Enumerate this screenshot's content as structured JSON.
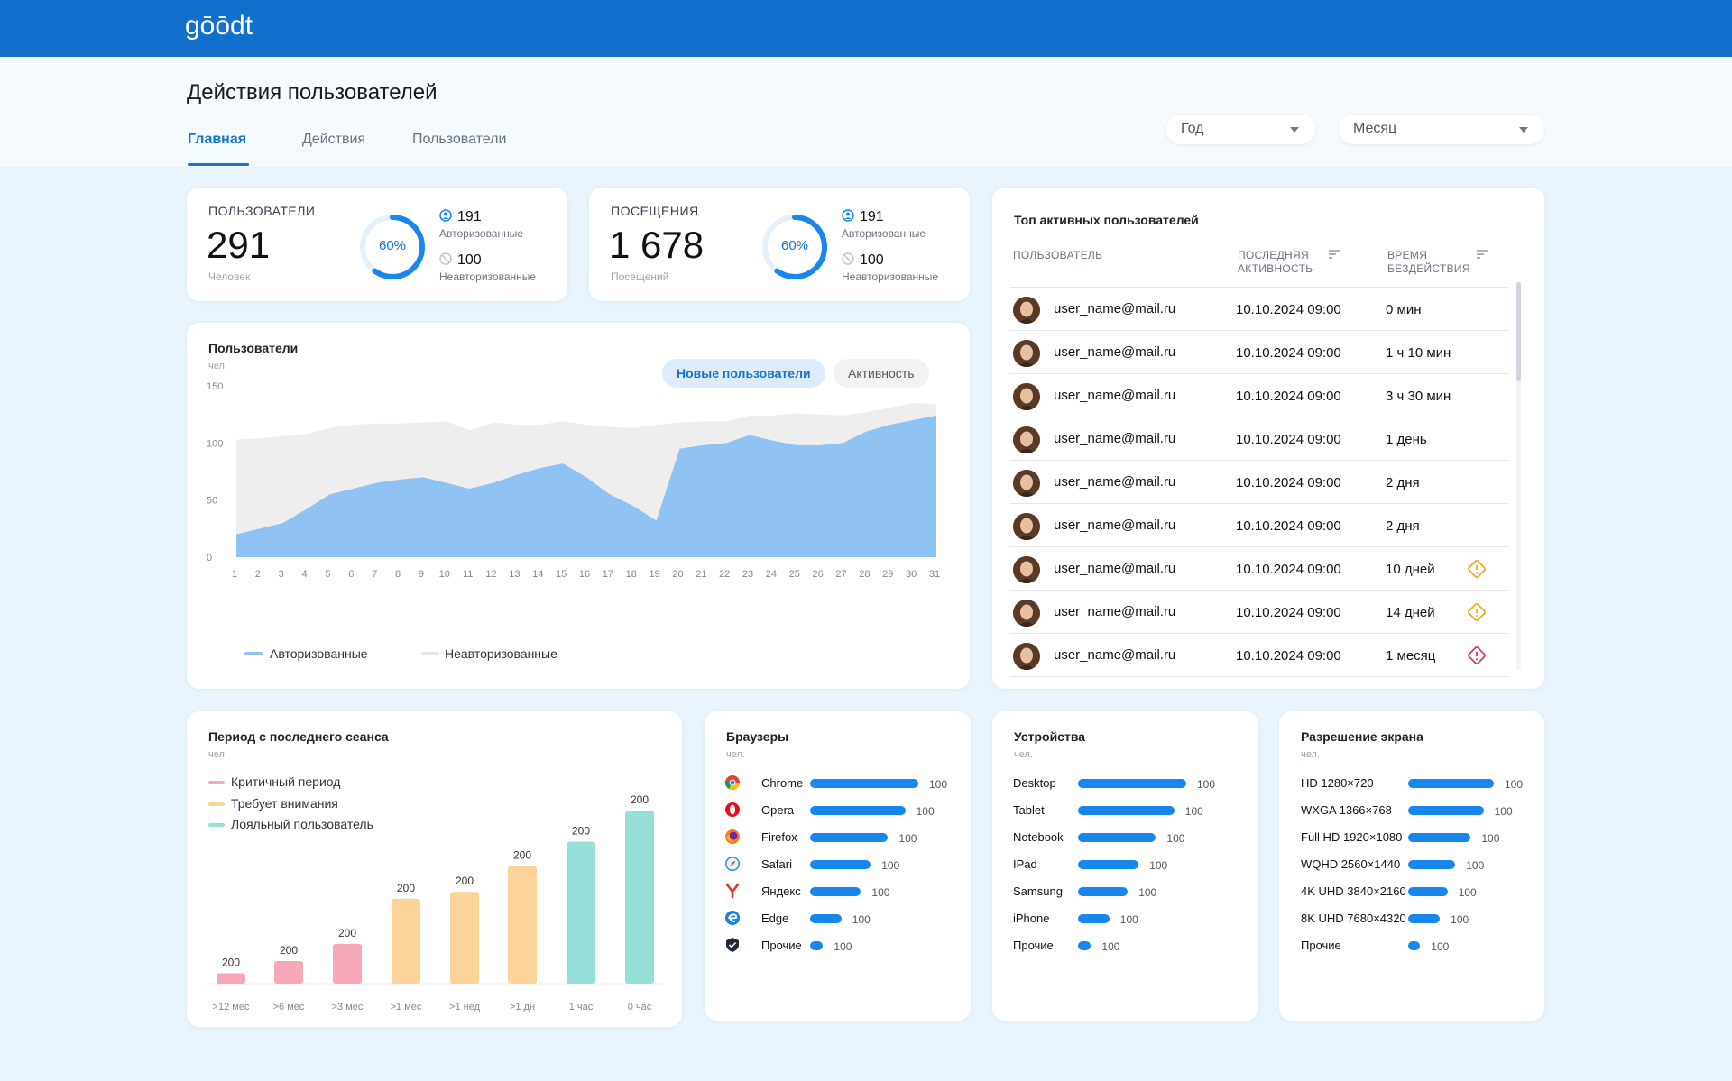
{
  "header": {
    "logo_text": "gōōdt"
  },
  "page": {
    "title": "Действия пользователей",
    "tabs": [
      {
        "label": "Главная"
      },
      {
        "label": "Действия"
      },
      {
        "label": "Пользователи"
      }
    ],
    "filters": {
      "year_label": "Год",
      "month_label": "Месяц"
    }
  },
  "stats": [
    {
      "title": "ПОЛЬЗОВАТЕЛИ",
      "value": "291",
      "unit": "Человек",
      "percent": "60%",
      "percent_fraction": 0.6,
      "authorized_count": "191",
      "authorized_label": "Авторизованные",
      "unauthorized_count": "100",
      "unauthorized_label": "Неавторизованные"
    },
    {
      "title": "ПОСЕЩЕНИЯ",
      "value": "1 678",
      "unit": "Посещений",
      "percent": "60%",
      "percent_fraction": 0.6,
      "authorized_count": "191",
      "authorized_label": "Авторизованные",
      "unauthorized_count": "100",
      "unauthorized_label": "Неавторизованные"
    }
  ],
  "users_chart": {
    "title": "Пользователи",
    "unit": "чел.",
    "toggle_new": "Новые пользователи",
    "toggle_activity": "Активность",
    "legend_authorized": "Авторизованные",
    "legend_unauthorized": "Неавторизованные",
    "colors": {
      "authorized": "#8ec3f3",
      "unauthorized": "#eeeeee"
    }
  },
  "top_users": {
    "title": "Топ активных пользователей",
    "col_user": "ПОЛЬЗОВАТЕЛЬ",
    "col_last_1": "ПОСЛЕДНЯЯ",
    "col_last_2": "АКТИВНОСТЬ",
    "col_idle_1": "ВРЕМЯ",
    "col_idle_2": "БЕЗДЕЙСТВИЯ",
    "rows": [
      {
        "email": "user_name@mail.ru",
        "date": "10.10.2024  09:00",
        "idle": "0 мин",
        "warn": ""
      },
      {
        "email": "user_name@mail.ru",
        "date": "10.10.2024  09:00",
        "idle": "1 ч 10 мин",
        "warn": ""
      },
      {
        "email": "user_name@mail.ru",
        "date": "10.10.2024  09:00",
        "idle": "3 ч 30 мин",
        "warn": ""
      },
      {
        "email": "user_name@mail.ru",
        "date": "10.10.2024  09:00",
        "idle": "1 день",
        "warn": ""
      },
      {
        "email": "user_name@mail.ru",
        "date": "10.10.2024  09:00",
        "idle": "2 дня",
        "warn": ""
      },
      {
        "email": "user_name@mail.ru",
        "date": "10.10.2024  09:00",
        "idle": "2 дня",
        "warn": ""
      },
      {
        "email": "user_name@mail.ru",
        "date": "10.10.2024  09:00",
        "idle": "10 дней",
        "warn": "warning"
      },
      {
        "email": "user_name@mail.ru",
        "date": "10.10.2024  09:00",
        "idle": "14 дней",
        "warn": "warning"
      },
      {
        "email": "user_name@mail.ru",
        "date": "10.10.2024  09:00",
        "idle": "1 месяц",
        "warn": "critical"
      }
    ]
  },
  "session_period": {
    "title": "Период с последнего сеанса",
    "unit": "чел.",
    "legend": [
      {
        "label": "Критичный период",
        "color": "#f7a8b8"
      },
      {
        "label": "Требует внимания",
        "color": "#fcd49a"
      },
      {
        "label": "Лояльный пользователь",
        "color": "#97e0d8"
      }
    ]
  },
  "browsers": {
    "title": "Браузеры",
    "unit": "чел.",
    "items": [
      {
        "label": "Chrome",
        "value": "100",
        "icon": "chrome-icon"
      },
      {
        "label": "Opera",
        "value": "100",
        "icon": "opera-icon"
      },
      {
        "label": "Firefox",
        "value": "100",
        "icon": "firefox-icon"
      },
      {
        "label": "Safari",
        "value": "100",
        "icon": "safari-icon"
      },
      {
        "label": "Яндекс",
        "value": "100",
        "icon": "yandex-icon"
      },
      {
        "label": "Edge",
        "value": "100",
        "icon": "edge-icon"
      },
      {
        "label": "Прочие",
        "value": "100",
        "icon": "shield-icon"
      }
    ],
    "bar_fractions": [
      1.0,
      0.88,
      0.72,
      0.56,
      0.47,
      0.29,
      0.12
    ]
  },
  "devices": {
    "title": "Устройства",
    "unit": "чел.",
    "items": [
      {
        "label": "Desktop",
        "value": "100"
      },
      {
        "label": "Tablet",
        "value": "100"
      },
      {
        "label": "Notebook",
        "value": "100"
      },
      {
        "label": "IPad",
        "value": "100"
      },
      {
        "label": "Samsung",
        "value": "100"
      },
      {
        "label": "iPhone",
        "value": "100"
      },
      {
        "label": "Прочие",
        "value": "100"
      }
    ],
    "bar_fractions": [
      1.0,
      0.89,
      0.72,
      0.56,
      0.46,
      0.29,
      0.12
    ]
  },
  "resolution": {
    "title": "Разрешение экрана",
    "unit": "чел.",
    "items": [
      {
        "label": "HD 1280×720",
        "value": "100"
      },
      {
        "label": "WXGA 1366×768",
        "value": "100"
      },
      {
        "label": "Full HD 1920×1080",
        "value": "100"
      },
      {
        "label": "WQHD 2560×1440",
        "value": "100"
      },
      {
        "label": "4K UHD 3840×2160",
        "value": "100"
      },
      {
        "label": "8K UHD 7680×4320",
        "value": "100"
      },
      {
        "label": "Прочие",
        "value": "100"
      }
    ],
    "bar_fractions": [
      1.0,
      0.88,
      0.73,
      0.55,
      0.46,
      0.37,
      0.14
    ]
  },
  "chart_data": [
    {
      "type": "area",
      "title": "Пользователи",
      "ylabel": "чел.",
      "x": [
        1,
        2,
        3,
        4,
        5,
        6,
        7,
        8,
        9,
        10,
        11,
        12,
        13,
        14,
        15,
        16,
        17,
        18,
        19,
        20,
        21,
        22,
        23,
        24,
        25,
        26,
        27,
        28,
        29,
        30,
        31
      ],
      "ylim": [
        0,
        150
      ],
      "yticks": [
        0,
        50,
        100,
        150
      ],
      "stacked": true,
      "series": [
        {
          "name": "Авторизованные",
          "color": "#8ec3f3",
          "values": [
            20,
            25,
            30,
            42,
            55,
            60,
            65,
            68,
            70,
            65,
            60,
            65,
            72,
            78,
            82,
            70,
            55,
            45,
            32,
            95,
            98,
            100,
            107,
            102,
            98,
            98,
            100,
            110,
            116,
            120,
            124
          ]
        },
        {
          "name": "Неавторизованные",
          "color": "#eeeeee",
          "values": [
            83,
            79,
            76,
            66,
            58,
            56,
            52,
            49,
            48,
            54,
            51,
            53,
            44,
            38,
            37,
            46,
            59,
            68,
            84,
            23,
            21,
            19,
            17,
            22,
            28,
            27,
            24,
            17,
            15,
            15,
            10
          ]
        }
      ],
      "legend": "bottom-left"
    },
    {
      "type": "bar",
      "title": "Период с последнего сеанса",
      "ylabel": "чел.",
      "categories": [
        ">12 мес",
        ">6 мес",
        ">3 мес",
        ">1 мес",
        ">1 нед",
        ">1 дн",
        "1 час",
        "0 час"
      ],
      "values": [
        200,
        200,
        200,
        200,
        200,
        200,
        200,
        200
      ],
      "bar_heights_relative": [
        0.06,
        0.13,
        0.23,
        0.49,
        0.53,
        0.68,
        0.82,
        1.0
      ],
      "colors": [
        "#f7a8b8",
        "#f7a8b8",
        "#f7a8b8",
        "#fcd49a",
        "#fcd49a",
        "#fcd49a",
        "#97e0d8",
        "#97e0d8"
      ]
    }
  ]
}
